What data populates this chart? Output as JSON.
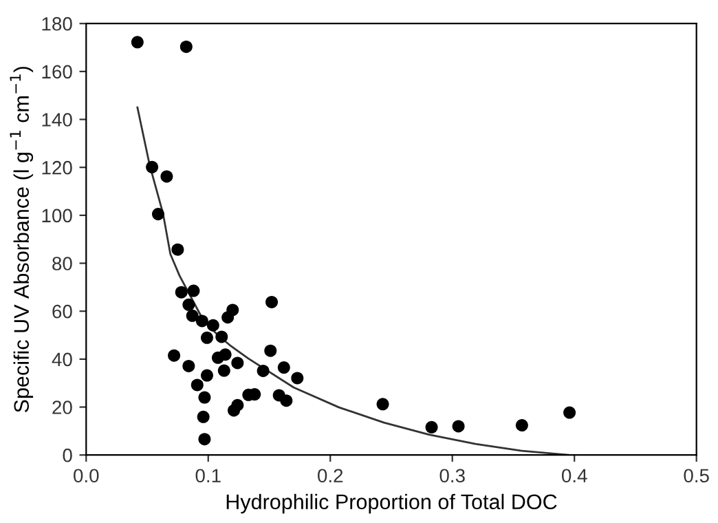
{
  "chart_data": {
    "type": "scatter",
    "xlabel": "Hydrophilic Proportion of Total DOC",
    "ylabel": "Specific UV Absorbance (l g$^{−1}$ cm$^{−1}$)",
    "xlim": [
      0.0,
      0.5
    ],
    "xticks": [
      {
        "value": 0.0,
        "label": "0.0"
      },
      0.1,
      0.2,
      0.3,
      0.4,
      0.5
    ],
    "ylim": [
      0,
      180
    ],
    "yticks": [
      0,
      20,
      40,
      60,
      80,
      100,
      120,
      140,
      160,
      180
    ],
    "grid": false,
    "marker": "circle",
    "series": [
      {
        "color": "#000000",
        "x": [
          0.042,
          0.082,
          0.054,
          0.066,
          0.059,
          0.075,
          0.078,
          0.088,
          0.084,
          0.087,
          0.095,
          0.104,
          0.099,
          0.111,
          0.116,
          0.12,
          0.152,
          0.072,
          0.084,
          0.108,
          0.114,
          0.124,
          0.113,
          0.099,
          0.091,
          0.097,
          0.096,
          0.097,
          0.121,
          0.124,
          0.133,
          0.138,
          0.145,
          0.151,
          0.158,
          0.162,
          0.173,
          0.164,
          0.243,
          0.283,
          0.305,
          0.357,
          0.396
        ],
        "values": [
          172.2,
          170.3,
          120.1,
          116.2,
          100.5,
          85.7,
          67.9,
          68.5,
          62.7,
          58.1,
          55.9,
          54.1,
          48.9,
          49.3,
          57.4,
          60.5,
          63.8,
          41.5,
          37.1,
          40.6,
          41.9,
          38.4,
          35.2,
          33.2,
          29.2,
          24.0,
          15.9,
          6.6,
          18.6,
          20.8,
          25.1,
          25.3,
          35.1,
          43.5,
          24.9,
          36.5,
          32.1,
          22.7,
          21.2,
          11.6,
          12.0,
          12.4,
          17.7
        ]
      },
      {
        "type": "line",
        "color": "#333333",
        "marker": "none",
        "line_style": "solid",
        "x": [
          0.042,
          0.052,
          0.063,
          0.069,
          0.0765,
          0.0963,
          0.108,
          0.1185,
          0.133,
          0.17,
          0.207,
          0.244,
          0.281,
          0.319,
          0.356,
          0.396
        ],
        "values": [
          145,
          121,
          100.7,
          83.8,
          74.8,
          55.9,
          50,
          45.5,
          40.2,
          28.2,
          19.9,
          13.5,
          8.5,
          4.6,
          1.8,
          0
        ]
      }
    ]
  }
}
